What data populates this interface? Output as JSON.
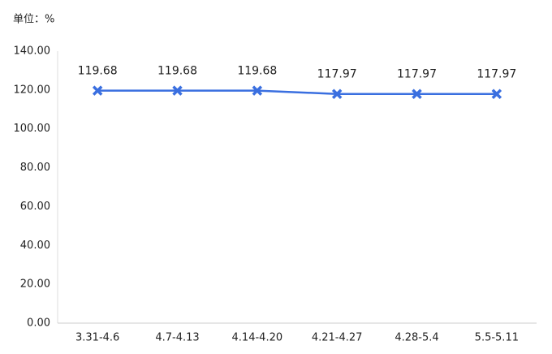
{
  "chart_data": {
    "type": "line",
    "unit_label": "单位：%",
    "categories": [
      "3.31-4.6",
      "4.7-4.13",
      "4.14-4.20",
      "4.21-4.27",
      "4.28-5.4",
      "5.5-5.11"
    ],
    "values": [
      119.68,
      119.68,
      119.68,
      117.97,
      117.97,
      117.97
    ],
    "color": "#3a6fe0",
    "ylim": [
      0,
      140
    ],
    "yticks": [
      {
        "value": 0,
        "label": "0.00"
      },
      {
        "value": 20,
        "label": "20.00"
      },
      {
        "value": 40,
        "label": "40.00"
      },
      {
        "value": 60,
        "label": "60.00"
      },
      {
        "value": 80,
        "label": "80.00"
      },
      {
        "value": 100,
        "label": "100.00"
      },
      {
        "value": 120,
        "label": "120.00"
      },
      {
        "value": 140,
        "label": "140.00"
      }
    ],
    "grid": false
  }
}
